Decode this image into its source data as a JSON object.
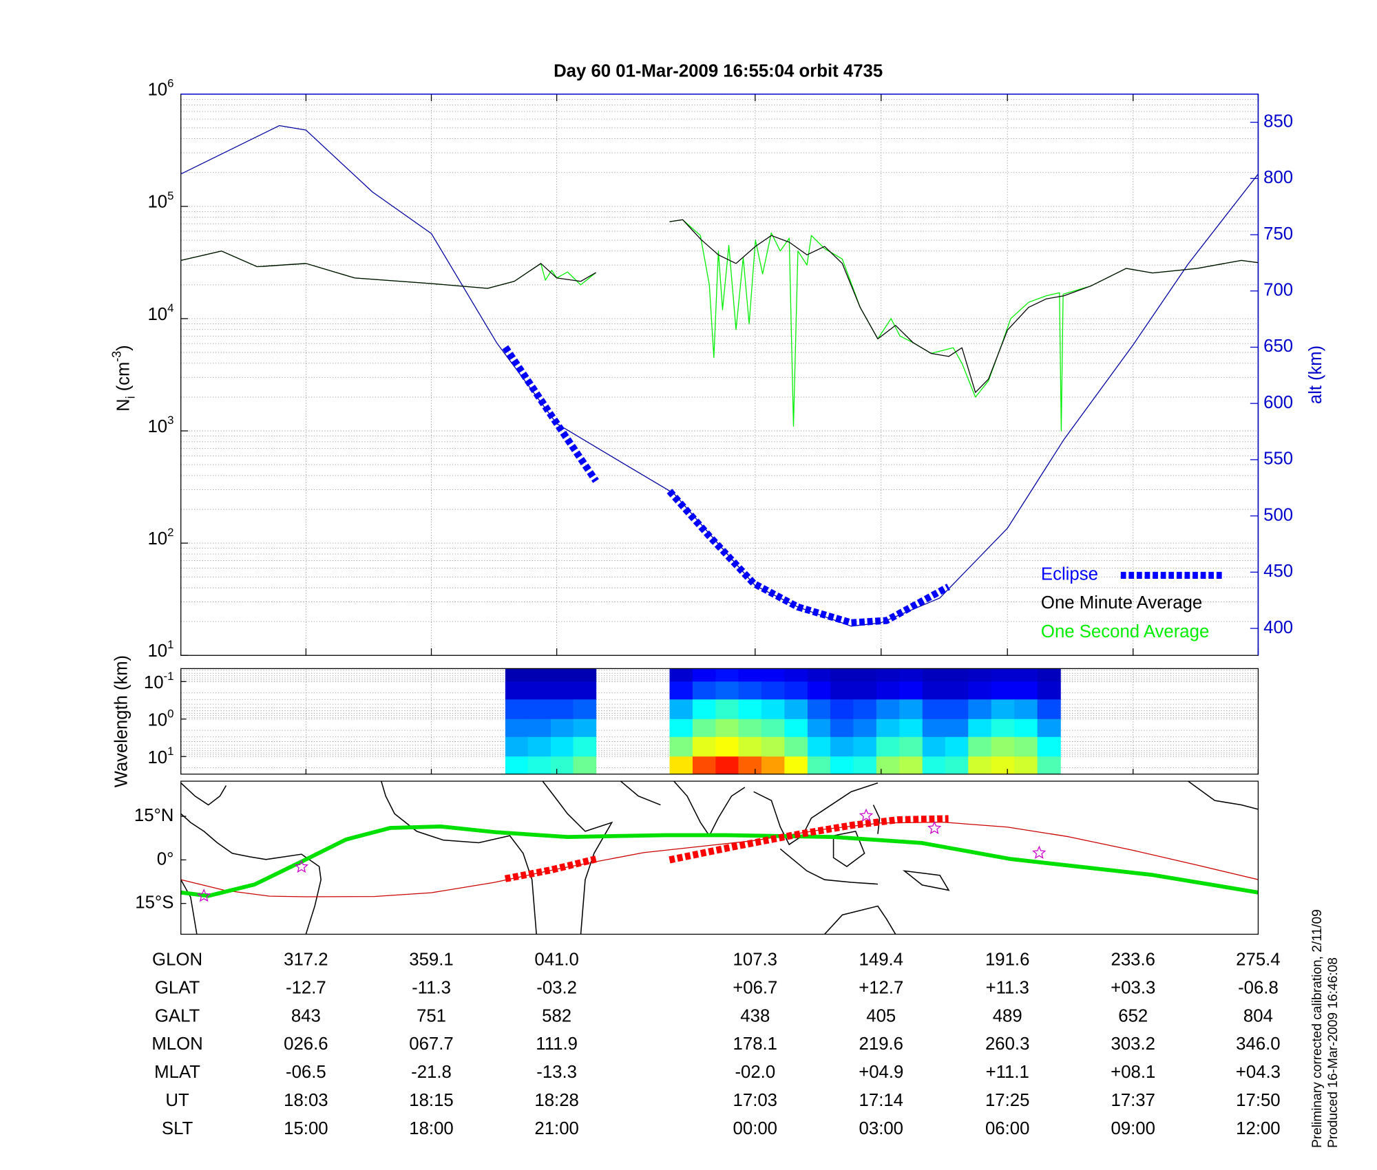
{
  "chart_data": [
    {
      "type": "line",
      "title": "Day 60  01-Mar-2009 16:55:04   orbit 4735",
      "ylabel_parts": [
        "N",
        "i",
        " (cm",
        "-3",
        ")"
      ],
      "y2label": "alt (km)",
      "log_y": true,
      "grid": true,
      "legend": "lower right",
      "xlim": [
        275.4,
        635.4
      ],
      "xticks": [
        317.2,
        359.1,
        401.0,
        467.3,
        509.4,
        551.6,
        593.6,
        635.4
      ],
      "ylim": [
        10,
        1000000
      ],
      "yticks": [
        {
          "value": 10,
          "label": "10",
          "exponent": "1"
        },
        {
          "value": 100,
          "label": "10",
          "exponent": "2"
        },
        {
          "value": 1000,
          "label": "10",
          "exponent": "3"
        },
        {
          "value": 10000,
          "label": "10",
          "exponent": "4"
        },
        {
          "value": 100000,
          "label": "10",
          "exponent": "5"
        },
        {
          "value": 1000000,
          "label": "10",
          "exponent": "6"
        }
      ],
      "y2lim": [
        376,
        875
      ],
      "y2ticks": [
        400,
        450,
        500,
        550,
        600,
        650,
        700,
        750,
        800,
        850
      ],
      "series": [
        {
          "name": "Eclipse",
          "color": "#0000ff",
          "axis": "y2",
          "linestyle": "dashed",
          "x": [
            383.8,
            399.0,
            414.1,
            426.0,
            438.7,
            452.0,
            466.8,
            481.6,
            499.4,
            511.2,
            531.9
          ],
          "values": [
            650,
            590,
            531,
            null,
            522,
            482,
            440,
            419,
            405,
            407,
            437
          ]
        },
        {
          "name": "One Minute Average",
          "color": "#000000",
          "x": [
            275.4,
            289.0,
            300.9,
            317.2,
            333.5,
            359.3,
            377.9,
            386.8,
            395.7,
            401.0,
            409.0,
            414.1,
            426.0,
            438.7,
            443.1,
            449.1,
            455.0,
            460.9,
            467.4,
            472.7,
            478.7,
            484.6,
            490.5,
            496.4,
            502.4,
            508.3,
            514.2,
            520.1,
            526.1,
            532.0,
            536.4,
            540.9,
            545.3,
            551.6,
            558.7,
            564.6,
            570.5,
            579.4,
            591.3,
            600.1,
            615.0,
            629.8,
            635.4
          ],
          "values": [
            33000,
            40000,
            29000,
            31000,
            23000,
            20500,
            18600,
            21500,
            31000,
            23000,
            21500,
            25700,
            null,
            73000,
            76000,
            51000,
            37000,
            31000,
            44000,
            55000,
            48000,
            37000,
            44000,
            31000,
            12600,
            6600,
            8700,
            6100,
            4900,
            4600,
            5500,
            2200,
            2900,
            7900,
            12600,
            15000,
            16000,
            19500,
            28000,
            25500,
            28000,
            33000,
            31500
          ]
        },
        {
          "name": "One Second Average",
          "color": "#00ee00",
          "x": [
            275.4,
            289.0,
            300.9,
            317.2,
            333.5,
            359.3,
            377.9,
            386.8,
            395.7,
            397.2,
            399.3,
            401.0,
            404.6,
            409.0,
            414.1,
            426.0,
            438.7,
            443.1,
            449.0,
            452.0,
            453.5,
            455.0,
            456.4,
            458.5,
            460.9,
            463.3,
            465.3,
            467.4,
            469.8,
            472.7,
            475.7,
            478.7,
            480.1,
            481.6,
            484.6,
            486.1,
            490.5,
            496.4,
            502.4,
            508.3,
            512.7,
            515.7,
            520.1,
            526.1,
            533.5,
            536.4,
            540.9,
            545.3,
            549.8,
            552.7,
            558.7,
            564.6,
            569.0,
            569.6,
            570.2,
            579.4,
            591.3,
            600.1,
            615.0,
            629.8,
            635.4
          ],
          "values": [
            33000,
            40000,
            29000,
            31000,
            23000,
            20500,
            18600,
            21500,
            31000,
            22000,
            27000,
            23000,
            26000,
            20000,
            25700,
            null,
            73000,
            76000,
            55000,
            20000,
            4500,
            40000,
            12000,
            45000,
            8000,
            35000,
            9000,
            50000,
            25000,
            58000,
            40000,
            52000,
            1100,
            40000,
            30000,
            55000,
            42000,
            34000,
            12600,
            6600,
            10000,
            7000,
            6100,
            4900,
            5500,
            4000,
            2000,
            2800,
            6000,
            10000,
            14000,
            16000,
            17000,
            1000,
            16500,
            19500,
            28000,
            25500,
            28000,
            33000,
            31500
          ]
        },
        {
          "color": "#0000a0",
          "axis": "y2",
          "x": [
            275.4,
            308.3,
            317.2,
            339.4,
            359.1,
            380.9,
            401.0,
            422.4,
            440.1,
            467.3,
            481.6,
            499.4,
            509.4,
            529.0,
            551.6,
            570.5,
            593.6,
            612.0,
            635.4
          ],
          "values": [
            804,
            847,
            843,
            788,
            751,
            654,
            582,
            548,
            520,
            438,
            419,
            402,
            405,
            427,
            489,
            568,
            652,
            724,
            804
          ]
        }
      ]
    },
    {
      "type": "heatmap",
      "ylabel": "Wavelength (km)",
      "log_y": true,
      "grid": true,
      "colormap": "jet",
      "ylim": [
        29.5,
        0.045
      ],
      "yticks": [
        {
          "value": 0.1,
          "label": "10",
          "exponent": "-1"
        },
        {
          "value": 1,
          "label": "10",
          "exponent": "0"
        },
        {
          "value": 10,
          "label": "10",
          "exponent": "1"
        }
      ],
      "xbins": [
        383.8,
        391.4,
        399.0,
        406.5,
        414.1,
        438.7,
        446.4,
        454.1,
        461.7,
        469.4,
        477.1,
        484.8,
        492.4,
        500.1,
        507.8,
        515.5,
        523.2,
        530.8,
        538.5,
        546.2,
        553.9,
        561.6,
        569.3
      ],
      "ybins": [
        0.045,
        0.1,
        0.3,
        1,
        3,
        10,
        29.5
      ],
      "z": [
        [
          0.05,
          0.05,
          0.05,
          0.05,
          null,
          0.08,
          0.12,
          0.14,
          0.12,
          0.12,
          0.1,
          0.08,
          0.06,
          0.06,
          0.07,
          0.08,
          0.06,
          0.06,
          0.07,
          0.08,
          0.08,
          0.06
        ],
        [
          0.08,
          0.08,
          0.08,
          0.08,
          null,
          0.14,
          0.2,
          0.22,
          0.2,
          0.18,
          0.16,
          0.12,
          0.08,
          0.08,
          0.1,
          0.12,
          0.08,
          0.08,
          0.1,
          0.12,
          0.12,
          0.08
        ],
        [
          0.2,
          0.2,
          0.2,
          0.22,
          null,
          0.3,
          0.38,
          0.42,
          0.38,
          0.35,
          0.3,
          0.22,
          0.18,
          0.2,
          0.25,
          0.28,
          0.2,
          0.2,
          0.25,
          0.3,
          0.28,
          0.2
        ],
        [
          0.25,
          0.25,
          0.28,
          0.3,
          null,
          0.38,
          0.48,
          0.52,
          0.48,
          0.45,
          0.38,
          0.28,
          0.22,
          0.25,
          0.32,
          0.35,
          0.25,
          0.25,
          0.35,
          0.4,
          0.38,
          0.28
        ],
        [
          0.3,
          0.32,
          0.35,
          0.4,
          null,
          0.5,
          0.6,
          0.62,
          0.58,
          0.55,
          0.48,
          0.35,
          0.3,
          0.32,
          0.42,
          0.45,
          0.32,
          0.35,
          0.48,
          0.52,
          0.5,
          0.38
        ],
        [
          0.38,
          0.4,
          0.42,
          0.48,
          null,
          0.65,
          0.8,
          0.85,
          0.78,
          0.72,
          0.62,
          0.45,
          0.38,
          0.4,
          0.52,
          0.55,
          0.4,
          0.42,
          0.58,
          0.6,
          0.58,
          0.45
        ]
      ]
    },
    {
      "type": "map",
      "ylim": [
        -25.6,
        27.1
      ],
      "yticks": [
        {
          "value": 15,
          "label": "15°N"
        },
        {
          "value": 0,
          "label": "0°"
        },
        {
          "value": -15,
          "label": "15°S"
        }
      ],
      "series": [
        {
          "color": "#cc0000",
          "linestyle": "thin",
          "x": [
            275.4,
            290,
            305,
            317.2,
            340,
            359.1,
            380,
            401.0,
            430,
            467.3,
            490,
            509.4,
            530,
            551.6,
            572,
            593.6,
            615,
            635.4
          ],
          "values": [
            -6.8,
            -10.5,
            -12.5,
            -12.7,
            -12.6,
            -11.3,
            -7.8,
            -3.2,
            2.5,
            6.7,
            10.5,
            12.7,
            13,
            11.3,
            8,
            3.3,
            -1.8,
            -6.8
          ]
        },
        {
          "color": "#00e000",
          "linestyle": "thick",
          "x": [
            275.4,
            284.6,
            300.0,
            315.7,
            330.5,
            345.3,
            362.2,
            380.9,
            404.6,
            437.2,
            457.9,
            493.5,
            523.1,
            552.7,
            600.1,
            635.4
          ],
          "values": [
            -11.2,
            -12.4,
            -8.5,
            -0.6,
            7,
            11,
            11.5,
            9.5,
            7.9,
            8.5,
            8.5,
            7.9,
            5.8,
            0.3,
            -5.2,
            -11.2
          ]
        },
        {
          "color": "#ff0000",
          "linestyle": "dashed",
          "x": [
            383.8,
            399.0,
            414.1,
            426.0,
            438.7,
            460,
            480,
            500,
            515,
            531.9
          ],
          "values": [
            -6.5,
            -3.5,
            0.3,
            null,
            0,
            4.5,
            8.5,
            12,
            13.8,
            14.2
          ]
        },
        {
          "color": "#cc00cc",
          "marker": "star",
          "x": [
            283.1,
            315.7,
            504.4,
            527.2,
            562.2
          ],
          "values": [
            -12.4,
            -2.4,
            15.2,
            10.9,
            2.4
          ]
        }
      ]
    }
  ],
  "table": {
    "rows": [
      {
        "label": "GLON",
        "values": [
          "317.2",
          "359.1",
          "041.0",
          "107.3",
          "149.4",
          "191.6",
          "233.6",
          "275.4"
        ]
      },
      {
        "label": "GLAT",
        "values": [
          "-12.7",
          "-11.3",
          "-03.2",
          "+06.7",
          "+12.7",
          "+11.3",
          "+03.3",
          "-06.8"
        ]
      },
      {
        "label": "GALT",
        "values": [
          "843",
          "751",
          "582",
          "438",
          "405",
          "489",
          "652",
          "804"
        ]
      },
      {
        "label": "MLON",
        "values": [
          "026.6",
          "067.7",
          "111.9",
          "178.1",
          "219.6",
          "260.3",
          "303.2",
          "346.0"
        ]
      },
      {
        "label": "MLAT",
        "values": [
          "-06.5",
          "-21.8",
          "-13.3",
          "-02.0",
          "+04.9",
          "+11.1",
          "+08.1",
          "+04.3"
        ]
      },
      {
        "label": "UT",
        "values": [
          "18:03",
          "18:15",
          "18:28",
          "17:03",
          "17:14",
          "17:25",
          "17:37",
          "17:50"
        ]
      },
      {
        "label": "SLT",
        "values": [
          "15:00",
          "18:00",
          "21:00",
          "00:00",
          "03:00",
          "06:00",
          "09:00",
          "12:00"
        ]
      }
    ]
  },
  "notes": [
    "Preliminary corrected calibration, 2/11/09",
    "Produced 16-Mar-2009 16:46:08"
  ]
}
